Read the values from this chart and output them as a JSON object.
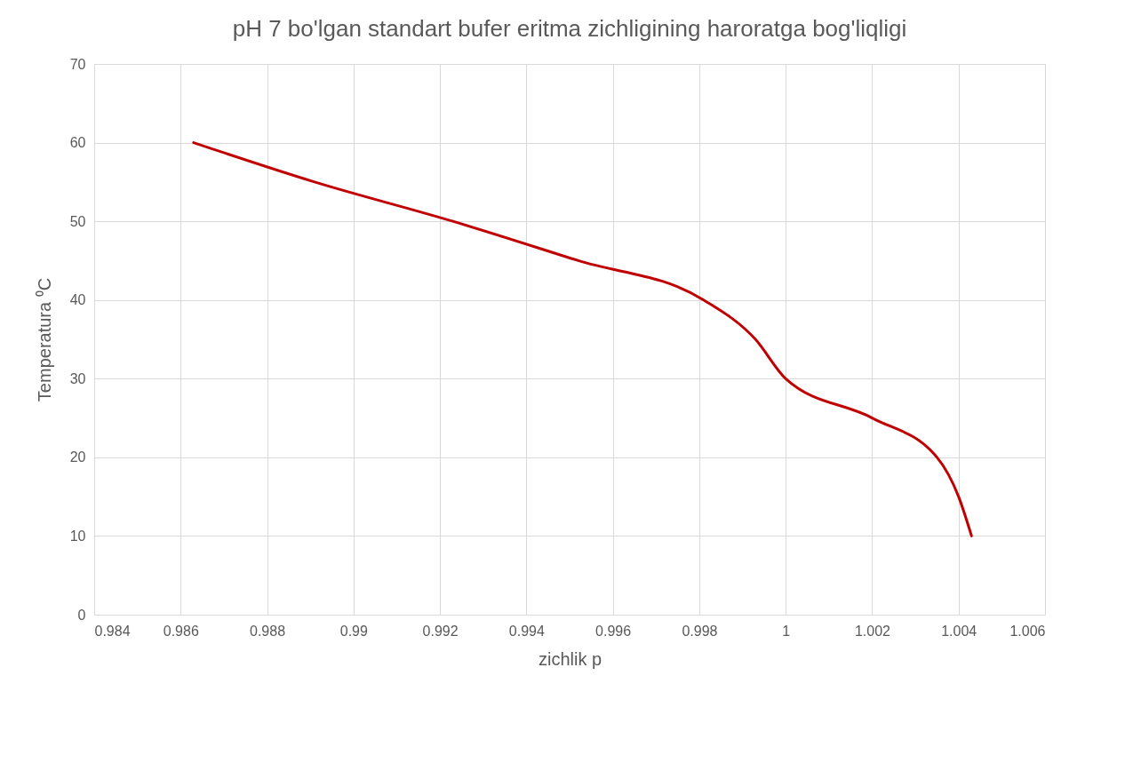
{
  "chart_data": {
    "type": "line",
    "title": "pH 7 bo'lgan standart bufer eritma zichligining haroratga bog'liqligi",
    "xlabel": "zichlik  p",
    "ylabel": "Temperatura ⁰C",
    "x": [
      0.9863,
      0.9891,
      0.9923,
      0.9952,
      0.9981,
      0.9993,
      1.0,
      1.002,
      1.0035,
      1.004,
      1.0043
    ],
    "series": [
      {
        "color": "#c00000",
        "values": [
          60,
          55,
          50,
          45,
          40,
          35,
          30,
          25,
          20,
          15,
          10
        ]
      }
    ],
    "xlim": [
      0.984,
      1.006
    ],
    "xticks": [
      0.984,
      0.986,
      0.988,
      0.99,
      0.992,
      0.994,
      0.996,
      0.998,
      1,
      1.002,
      1.004,
      1.006
    ],
    "ylim": [
      0,
      70
    ],
    "yticks": [
      0,
      10,
      20,
      30,
      40,
      50,
      60,
      70
    ],
    "grid": true,
    "marker": "none",
    "line_style": "solid"
  }
}
